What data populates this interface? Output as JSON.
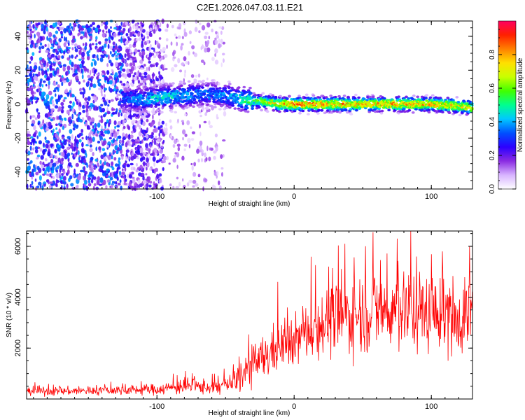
{
  "figure_title": "C2E1.2026.047.03.11.E21",
  "chart_data": [
    {
      "type": "heatmap",
      "title": "C2E1.2026.047.03.11.E21",
      "xlabel": "Height of straight line (km)",
      "ylabel": "Frequency (Hz)",
      "xlim": [
        -195,
        130
      ],
      "ylim": [
        -50,
        49
      ],
      "xticks": [
        -100,
        0,
        100
      ],
      "yticks": [
        -40,
        -20,
        0,
        20,
        40
      ],
      "grid": false,
      "colorbar": {
        "label": "Normalized spectral amplitude",
        "range": [
          0,
          1
        ],
        "ticks": [
          0.0,
          0.2,
          0.4,
          0.6,
          0.8
        ],
        "colors": [
          "#ffffff",
          "#d8b4ff",
          "#8a2be2",
          "#2b00ff",
          "#0050ff",
          "#00c8ff",
          "#00ff90",
          "#40ff00",
          "#c8ff00",
          "#ffe000",
          "#ff8000",
          "#ff2000",
          "#ff0060"
        ]
      },
      "ridge": [
        {
          "x": -125,
          "f": 3,
          "amp": 0.35
        },
        {
          "x": -110,
          "f": 3,
          "amp": 0.45
        },
        {
          "x": -95,
          "f": 4,
          "amp": 0.5
        },
        {
          "x": -80,
          "f": 5,
          "amp": 0.45
        },
        {
          "x": -65,
          "f": 6,
          "amp": 0.4
        },
        {
          "x": -50,
          "f": 5,
          "amp": 0.4
        },
        {
          "x": -40,
          "f": 3,
          "amp": 0.5
        },
        {
          "x": -30,
          "f": 2,
          "amp": 0.6
        },
        {
          "x": -20,
          "f": 1,
          "amp": 0.75
        },
        {
          "x": -10,
          "f": 0,
          "amp": 0.85
        },
        {
          "x": 0,
          "f": 0,
          "amp": 0.9
        },
        {
          "x": 20,
          "f": 0,
          "amp": 0.9
        },
        {
          "x": 40,
          "f": 0,
          "amp": 0.85
        },
        {
          "x": 60,
          "f": 0,
          "amp": 0.85
        },
        {
          "x": 80,
          "f": 0,
          "amp": 0.85
        },
        {
          "x": 100,
          "f": 0,
          "amp": 0.85
        },
        {
          "x": 120,
          "f": -1,
          "amp": 0.8
        },
        {
          "x": 130,
          "f": -2,
          "amp": 0.75
        }
      ],
      "noise_regions": [
        {
          "x_range": [
            -195,
            -125
          ],
          "f_range": [
            -50,
            49
          ],
          "density": "dense",
          "amp": 0.3
        },
        {
          "x_range": [
            -125,
            -95
          ],
          "f_range": [
            -50,
            49
          ],
          "density": "medium",
          "amp": 0.2
        },
        {
          "x_range": [
            -95,
            -50
          ],
          "f_range": [
            -50,
            49
          ],
          "density": "sparse",
          "amp": 0.12
        }
      ]
    },
    {
      "type": "line",
      "xlabel": "Height of straight line (km)",
      "ylabel": "SNR (10 * v/v)",
      "xlim": [
        -195,
        130
      ],
      "ylim": [
        0,
        6600
      ],
      "xticks": [
        -100,
        0,
        100
      ],
      "yticks": [
        2000,
        4000,
        6000
      ],
      "grid": false,
      "color": "#ff0000",
      "series": [
        {
          "name": "SNR",
          "envelope": [
            {
              "x": -195,
              "mean": 300,
              "spread": 150
            },
            {
              "x": -150,
              "mean": 320,
              "spread": 160
            },
            {
              "x": -100,
              "mean": 380,
              "spread": 200
            },
            {
              "x": -80,
              "mean": 500,
              "spread": 300
            },
            {
              "x": -60,
              "mean": 450,
              "spread": 250
            },
            {
              "x": -45,
              "mean": 600,
              "spread": 400
            },
            {
              "x": -35,
              "mean": 1100,
              "spread": 700
            },
            {
              "x": -25,
              "mean": 1500,
              "spread": 800
            },
            {
              "x": -15,
              "mean": 1900,
              "spread": 900
            },
            {
              "x": 0,
              "mean": 2300,
              "spread": 900
            },
            {
              "x": 20,
              "mean": 3000,
              "spread": 1200
            },
            {
              "x": 40,
              "mean": 3300,
              "spread": 1400
            },
            {
              "x": 60,
              "mean": 3500,
              "spread": 1500
            },
            {
              "x": 80,
              "mean": 3500,
              "spread": 1500
            },
            {
              "x": 100,
              "mean": 3400,
              "spread": 1400
            },
            {
              "x": 115,
              "mean": 3200,
              "spread": 1400
            },
            {
              "x": 130,
              "mean": 3400,
              "spread": 1500
            }
          ],
          "peaks": [
            {
              "x": -12,
              "y": 4600
            },
            {
              "x": 25,
              "y": 5200
            },
            {
              "x": 37,
              "y": 6100
            },
            {
              "x": 52,
              "y": 6000
            },
            {
              "x": 75,
              "y": 6300
            },
            {
              "x": 85,
              "y": 6600
            },
            {
              "x": 108,
              "y": 5800
            },
            {
              "x": 128,
              "y": 6000
            }
          ]
        }
      ]
    }
  ]
}
